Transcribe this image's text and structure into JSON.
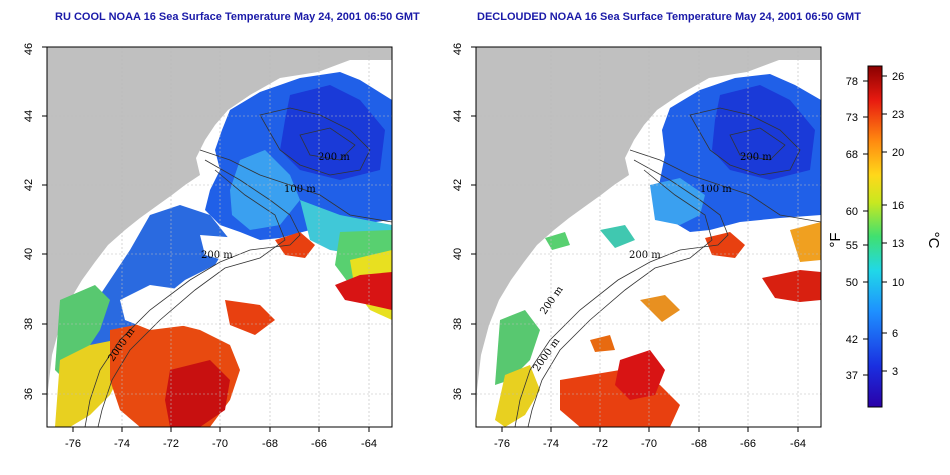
{
  "panels": [
    {
      "title": "RU COOL NOAA 16 Sea Surface Temperature May 24, 2001 06:50 GMT"
    },
    {
      "title": "DECLOUDED NOAA 16 Sea Surface Temperature May 24, 2001 06:50 GMT"
    }
  ],
  "axes": {
    "lon_ticks": [
      "-76",
      "-74",
      "-72",
      "-70",
      "-68",
      "-66",
      "-64"
    ],
    "lat_ticks": [
      "36",
      "38",
      "40",
      "42",
      "44",
      "46"
    ]
  },
  "contour_labels": {
    "left": [
      "200 m",
      "100 m",
      "200 m",
      "2000 m"
    ],
    "right": [
      "200 m",
      "100 m",
      "200 m",
      "200 m",
      "2000 m"
    ]
  },
  "colorbar": {
    "fahrenheit_ticks": [
      "78",
      "73",
      "68",
      "60",
      "55",
      "50",
      "42",
      "37"
    ],
    "celsius_ticks": [
      "26",
      "23",
      "20",
      "16",
      "13",
      "10",
      "6",
      "3"
    ],
    "fahrenheit_unit": "°F",
    "celsius_unit": "°C"
  },
  "colors": {
    "land": "#c0c0c0",
    "cloud_mask": "#ffffff",
    "cold": "#1f3bd8",
    "warm": "#d81414",
    "title": "#1a1aa8"
  }
}
